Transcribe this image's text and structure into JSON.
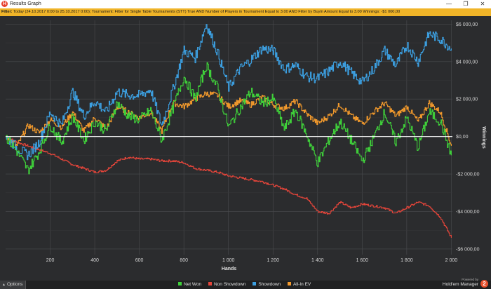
{
  "window": {
    "title": "Results Graph",
    "app_icon_glyph": "H",
    "minimize_glyph": "—",
    "restore_glyph": "❐",
    "close_glyph": "✕"
  },
  "filter": {
    "label": "Filter:",
    "text": "Today (24.10.2017 0:00 to 25.10.2017 0:00); Tournament: Filter for Single Table Tournaments (STT) True AND Number of Players in Tournament Equal to 3.00 AND Filter by Buyin Amount Equal to 3.00 Winnings: -$1 000,00"
  },
  "options": {
    "label": "Options",
    "arrow_glyph": "▲"
  },
  "branding": {
    "powered": "Powered by",
    "name": "Hold'em Manager",
    "badge": "2"
  },
  "colors": {
    "net_won": "#3fd13a",
    "non_showdown": "#e5453a",
    "showdown": "#3c9fe0",
    "all_in_ev": "#f39a2c",
    "zero_line": "#ffffff"
  },
  "chart_data": {
    "type": "line",
    "xlabel": "Hands",
    "ylabel": "Winnings",
    "xlim": [
      0,
      2005
    ],
    "ylim": [
      -6300,
      6200
    ],
    "x_ticks": [
      200,
      400,
      600,
      800,
      1000,
      1200,
      1400,
      1600,
      1800,
      2000
    ],
    "x_tick_labels": [
      "200",
      "400",
      "600",
      "800",
      "1 000",
      "1 200",
      "1 400",
      "1 600",
      "1 800",
      "2 000"
    ],
    "y_ticks": [
      6000,
      4000,
      2000,
      0,
      -2000,
      -4000,
      -6000
    ],
    "y_tick_labels": [
      "$6 000,00",
      "$4 000,00",
      "$2 000,00",
      "$0,00",
      "-$2 000,00",
      "-$4 000,00",
      "-$6 000,00"
    ],
    "grid": true,
    "legend_position": "bottom",
    "series": [
      {
        "name": "Net Won",
        "x": [
          0,
          50,
          100,
          150,
          200,
          250,
          300,
          350,
          400,
          450,
          500,
          550,
          600,
          650,
          700,
          750,
          800,
          850,
          900,
          950,
          1000,
          1050,
          1100,
          1150,
          1200,
          1250,
          1300,
          1350,
          1400,
          1450,
          1500,
          1550,
          1600,
          1650,
          1700,
          1750,
          1800,
          1850,
          1900,
          1950,
          2000
        ],
        "values": [
          0,
          -800,
          -1800,
          -800,
          600,
          -300,
          1100,
          -200,
          800,
          300,
          1800,
          1100,
          900,
          1400,
          -200,
          1500,
          3200,
          2000,
          3800,
          2600,
          500,
          1500,
          2400,
          1800,
          2000,
          400,
          1400,
          100,
          -1400,
          -200,
          800,
          -200,
          -1300,
          -100,
          1300,
          -300,
          1000,
          -600,
          1300,
          800,
          -1000
        ]
      },
      {
        "name": "Non Showdown",
        "x": [
          0,
          50,
          100,
          150,
          200,
          250,
          300,
          350,
          400,
          450,
          500,
          550,
          600,
          650,
          700,
          750,
          800,
          850,
          900,
          950,
          1000,
          1050,
          1100,
          1150,
          1200,
          1250,
          1300,
          1350,
          1400,
          1450,
          1500,
          1550,
          1600,
          1650,
          1700,
          1750,
          1800,
          1850,
          1900,
          1950,
          2000
        ],
        "values": [
          0,
          -300,
          -500,
          -700,
          -900,
          -1200,
          -1500,
          -1700,
          -1900,
          -1800,
          -1300,
          -1100,
          -1200,
          -1200,
          -1300,
          -1300,
          -1400,
          -1700,
          -1800,
          -1900,
          -2100,
          -2200,
          -2300,
          -2400,
          -2600,
          -2800,
          -3100,
          -3300,
          -4000,
          -4100,
          -3500,
          -3800,
          -3600,
          -3700,
          -3800,
          -4100,
          -3800,
          -3500,
          -3700,
          -4300,
          -5400
        ]
      },
      {
        "name": "Showdown",
        "x": [
          0,
          50,
          100,
          150,
          200,
          250,
          300,
          350,
          400,
          450,
          500,
          550,
          600,
          650,
          700,
          750,
          800,
          850,
          900,
          950,
          1000,
          1050,
          1100,
          1150,
          1200,
          1250,
          1300,
          1350,
          1400,
          1450,
          1500,
          1550,
          1600,
          1650,
          1700,
          1750,
          1800,
          1850,
          1900,
          1950,
          2000
        ],
        "values": [
          0,
          -600,
          -1000,
          -300,
          1300,
          600,
          2400,
          1100,
          1900,
          1300,
          2400,
          2200,
          2200,
          2500,
          600,
          2500,
          4600,
          4200,
          6000,
          4500,
          2600,
          3600,
          4100,
          4700,
          4600,
          3600,
          3800,
          3200,
          3100,
          3500,
          4000,
          3400,
          2900,
          3600,
          4600,
          3800,
          4900,
          4000,
          5500,
          5200,
          4700
        ]
      },
      {
        "name": "All-In EV",
        "x": [
          0,
          50,
          100,
          150,
          200,
          250,
          300,
          350,
          400,
          450,
          500,
          550,
          600,
          650,
          700,
          750,
          800,
          850,
          900,
          950,
          1000,
          1050,
          1100,
          1150,
          1200,
          1250,
          1300,
          1350,
          1400,
          1450,
          1500,
          1550,
          1600,
          1650,
          1700,
          1750,
          1800,
          1850,
          1900,
          1950,
          2000
        ],
        "values": [
          0,
          -500,
          600,
          200,
          900,
          500,
          1300,
          300,
          1000,
          400,
          1600,
          1300,
          1000,
          1300,
          300,
          1800,
          1600,
          2000,
          2300,
          2200,
          1600,
          1900,
          1700,
          2100,
          1700,
          1500,
          1900,
          1200,
          700,
          1100,
          1700,
          1100,
          700,
          1300,
          1800,
          1100,
          1600,
          800,
          1800,
          1300,
          -500
        ]
      }
    ]
  }
}
